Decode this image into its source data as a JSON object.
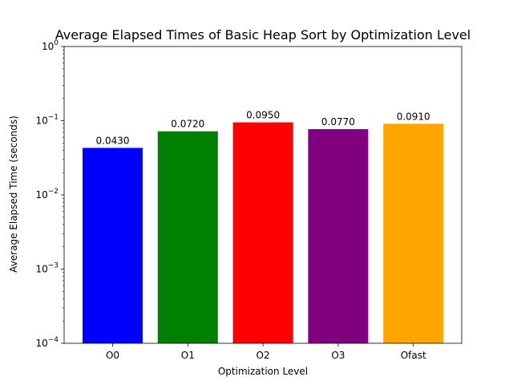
{
  "chart_data": {
    "type": "bar",
    "title": "Average Elapsed Times of Basic Heap Sort by Optimization Level",
    "xlabel": "Optimization Level",
    "ylabel": "Average Elapsed Time (seconds)",
    "y_scale": "log",
    "ylim": [
      0.0001,
      1
    ],
    "y_ticks": [
      {
        "value": 0.0001,
        "base": "10",
        "exp": "−4"
      },
      {
        "value": 0.001,
        "base": "10",
        "exp": "−3"
      },
      {
        "value": 0.01,
        "base": "10",
        "exp": "−2"
      },
      {
        "value": 0.1,
        "base": "10",
        "exp": "−1"
      },
      {
        "value": 1,
        "base": "10",
        "exp": "0"
      }
    ],
    "categories": [
      "O0",
      "O1",
      "O2",
      "O3",
      "Ofast"
    ],
    "values": [
      0.043,
      0.072,
      0.095,
      0.077,
      0.091
    ],
    "value_labels": [
      "0.0430",
      "0.0720",
      "0.0950",
      "0.0770",
      "0.0910"
    ],
    "colors": [
      "#0000ff",
      "#008000",
      "#ff0000",
      "#800080",
      "#ffa500"
    ],
    "grid": false,
    "legend": "none"
  }
}
